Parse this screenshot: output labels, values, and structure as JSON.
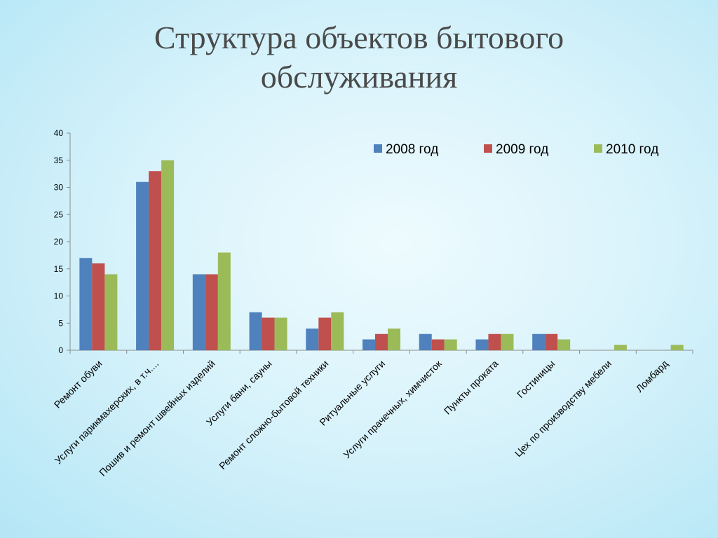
{
  "slide": {
    "title_line1": "Структура объектов бытового",
    "title_line2": "обслуживания"
  },
  "chart_data": {
    "type": "bar",
    "title": "",
    "xlabel": "",
    "ylabel": "",
    "ylim": [
      0,
      40
    ],
    "yticks": [
      0,
      5,
      10,
      15,
      20,
      25,
      30,
      35,
      40
    ],
    "legend_position": "top-right",
    "grid": false,
    "categories": [
      "Ремонт обуви",
      "Услуги парикмахерских, в т.ч....",
      "Пошив и ремонт швейных изделий",
      "Услуги бани, сауны",
      "Ремонт сложно-бытовой техники",
      "Ритуальные услуги",
      "Услуги прачечных, химчисток",
      "Пункты проката",
      "Гостиницы",
      "Цех по производству мебели",
      "Ломбард"
    ],
    "series": [
      {
        "name": "2008 год",
        "color": "#4f81bd",
        "values": [
          17,
          31,
          14,
          7,
          4,
          2,
          3,
          2,
          3,
          0,
          0
        ]
      },
      {
        "name": "2009 год",
        "color": "#c0504d",
        "values": [
          16,
          33,
          14,
          6,
          6,
          3,
          2,
          3,
          3,
          0,
          0
        ]
      },
      {
        "name": "2010 год",
        "color": "#9bbb59",
        "values": [
          14,
          35,
          18,
          6,
          7,
          4,
          2,
          3,
          2,
          1,
          1
        ]
      }
    ]
  }
}
